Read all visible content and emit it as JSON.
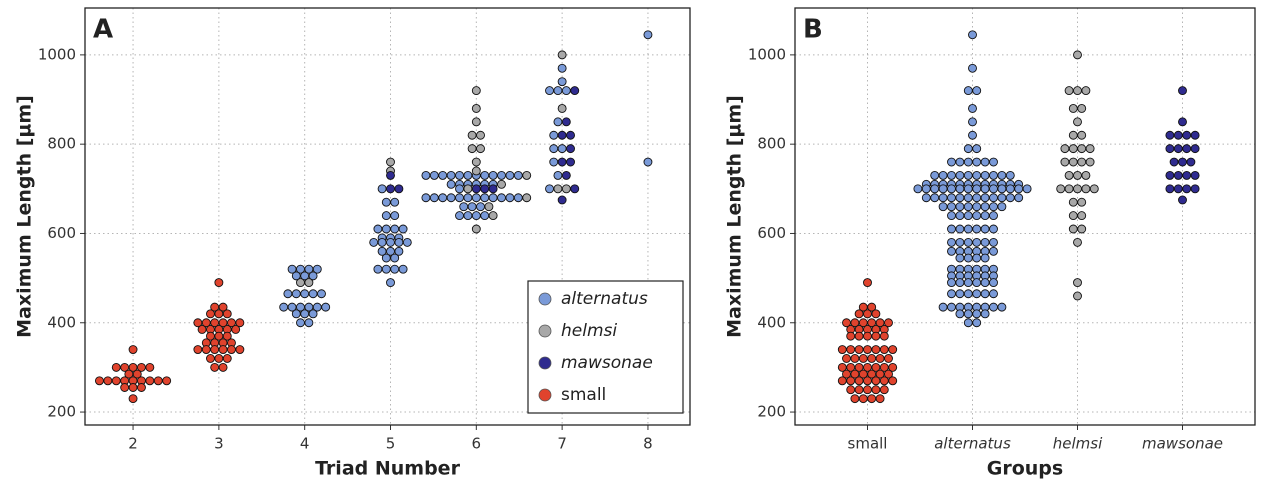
{
  "chart_data": [
    {
      "type": "dotplot",
      "panel_label": "A",
      "x_label": "Triad Number",
      "y_label": "Maximum Length [µm]",
      "xlim": [
        1.44,
        8.49
      ],
      "xticks": [
        2,
        3,
        4,
        5,
        6,
        7,
        8
      ],
      "ylim": [
        171,
        1105
      ],
      "yticks": [
        200,
        400,
        600,
        800,
        1000
      ],
      "grid": true,
      "legend": "lower right",
      "series": [
        {
          "name": "alternatus",
          "color": "#7a9ad8",
          "italic": true,
          "points": [
            [
              4,
              520
            ],
            [
              4,
              520
            ],
            [
              4,
              520
            ],
            [
              4,
              520
            ],
            [
              4,
              505
            ],
            [
              4,
              505
            ],
            [
              4,
              505
            ],
            [
              4,
              465
            ],
            [
              4,
              465
            ],
            [
              4,
              465
            ],
            [
              4,
              465
            ],
            [
              4,
              465
            ],
            [
              4,
              435
            ],
            [
              4,
              435
            ],
            [
              4,
              435
            ],
            [
              4,
              435
            ],
            [
              4,
              435
            ],
            [
              4,
              435
            ],
            [
              4,
              420
            ],
            [
              4,
              420
            ],
            [
              4,
              420
            ],
            [
              4,
              400
            ],
            [
              4,
              400
            ],
            [
              5,
              700
            ],
            [
              5,
              670
            ],
            [
              5,
              670
            ],
            [
              5,
              640
            ],
            [
              5,
              640
            ],
            [
              5,
              610
            ],
            [
              5,
              610
            ],
            [
              5,
              610
            ],
            [
              5,
              610
            ],
            [
              5,
              590
            ],
            [
              5,
              590
            ],
            [
              5,
              590
            ],
            [
              5,
              580
            ],
            [
              5,
              580
            ],
            [
              5,
              580
            ],
            [
              5,
              580
            ],
            [
              5,
              580
            ],
            [
              5,
              560
            ],
            [
              5,
              560
            ],
            [
              5,
              560
            ],
            [
              5,
              545
            ],
            [
              5,
              545
            ],
            [
              5,
              520
            ],
            [
              5,
              520
            ],
            [
              5,
              520
            ],
            [
              5,
              520
            ],
            [
              5,
              490
            ],
            [
              6,
              730
            ],
            [
              6,
              730
            ],
            [
              6,
              730
            ],
            [
              6,
              730
            ],
            [
              6,
              730
            ],
            [
              6,
              730
            ],
            [
              6,
              730
            ],
            [
              6,
              730
            ],
            [
              6,
              730
            ],
            [
              6,
              730
            ],
            [
              6,
              730
            ],
            [
              6,
              730
            ],
            [
              6,
              710
            ],
            [
              6,
              710
            ],
            [
              6,
              710
            ],
            [
              6,
              710
            ],
            [
              6,
              710
            ],
            [
              6,
              710
            ],
            [
              6,
              700
            ],
            [
              6,
              680
            ],
            [
              6,
              680
            ],
            [
              6,
              680
            ],
            [
              6,
              680
            ],
            [
              6,
              680
            ],
            [
              6,
              680
            ],
            [
              6,
              680
            ],
            [
              6,
              680
            ],
            [
              6,
              680
            ],
            [
              6,
              680
            ],
            [
              6,
              680
            ],
            [
              6,
              680
            ],
            [
              6,
              660
            ],
            [
              6,
              660
            ],
            [
              6,
              660
            ],
            [
              6,
              640
            ],
            [
              6,
              640
            ],
            [
              6,
              640
            ],
            [
              6,
              640
            ],
            [
              7,
              970
            ],
            [
              7,
              940
            ],
            [
              7,
              920
            ],
            [
              7,
              920
            ],
            [
              7,
              920
            ],
            [
              7,
              850
            ],
            [
              7,
              820
            ],
            [
              7,
              790
            ],
            [
              7,
              790
            ],
            [
              7,
              760
            ],
            [
              7,
              730
            ],
            [
              7,
              700
            ],
            [
              8,
              1045
            ],
            [
              8,
              760
            ]
          ]
        },
        {
          "name": "helmsi",
          "color": "#a8a8a8",
          "italic": true,
          "points": [
            [
              4,
              490
            ],
            [
              4,
              490
            ],
            [
              5,
              760
            ],
            [
              5,
              740
            ],
            [
              6,
              920
            ],
            [
              6,
              880
            ],
            [
              6,
              850
            ],
            [
              6,
              820
            ],
            [
              6,
              820
            ],
            [
              6,
              790
            ],
            [
              6,
              790
            ],
            [
              6,
              760
            ],
            [
              6,
              740
            ],
            [
              6,
              730
            ],
            [
              6,
              710
            ],
            [
              6,
              700
            ],
            [
              6,
              680
            ],
            [
              6,
              660
            ],
            [
              6,
              640
            ],
            [
              6,
              610
            ],
            [
              7,
              1000
            ],
            [
              7,
              880
            ],
            [
              7,
              700
            ],
            [
              7,
              700
            ]
          ]
        },
        {
          "name": "mawsonae",
          "color": "#2f2b8f",
          "italic": true,
          "points": [
            [
              5,
              730
            ],
            [
              5,
              700
            ],
            [
              5,
              700
            ],
            [
              6,
              700
            ],
            [
              6,
              700
            ],
            [
              6,
              700
            ],
            [
              7,
              920
            ],
            [
              7,
              850
            ],
            [
              7,
              820
            ],
            [
              7,
              820
            ],
            [
              7,
              790
            ],
            [
              7,
              760
            ],
            [
              7,
              760
            ],
            [
              7,
              730
            ],
            [
              7,
              700
            ],
            [
              7,
              675
            ]
          ]
        },
        {
          "name": "small",
          "color": "#e0432d",
          "italic": false,
          "points": [
            [
              2,
              340
            ],
            [
              2,
              300
            ],
            [
              2,
              300
            ],
            [
              2,
              300
            ],
            [
              2,
              300
            ],
            [
              2,
              300
            ],
            [
              2,
              285
            ],
            [
              2,
              285
            ],
            [
              2,
              270
            ],
            [
              2,
              270
            ],
            [
              2,
              270
            ],
            [
              2,
              270
            ],
            [
              2,
              270
            ],
            [
              2,
              270
            ],
            [
              2,
              270
            ],
            [
              2,
              270
            ],
            [
              2,
              270
            ],
            [
              2,
              255
            ],
            [
              2,
              255
            ],
            [
              2,
              255
            ],
            [
              2,
              230
            ],
            [
              3,
              490
            ],
            [
              3,
              435
            ],
            [
              3,
              435
            ],
            [
              3,
              420
            ],
            [
              3,
              420
            ],
            [
              3,
              420
            ],
            [
              3,
              400
            ],
            [
              3,
              400
            ],
            [
              3,
              400
            ],
            [
              3,
              400
            ],
            [
              3,
              400
            ],
            [
              3,
              400
            ],
            [
              3,
              385
            ],
            [
              3,
              385
            ],
            [
              3,
              385
            ],
            [
              3,
              385
            ],
            [
              3,
              385
            ],
            [
              3,
              370
            ],
            [
              3,
              370
            ],
            [
              3,
              370
            ],
            [
              3,
              355
            ],
            [
              3,
              355
            ],
            [
              3,
              355
            ],
            [
              3,
              355
            ],
            [
              3,
              340
            ],
            [
              3,
              340
            ],
            [
              3,
              340
            ],
            [
              3,
              340
            ],
            [
              3,
              340
            ],
            [
              3,
              340
            ],
            [
              3,
              320
            ],
            [
              3,
              320
            ],
            [
              3,
              320
            ],
            [
              3,
              300
            ],
            [
              3,
              300
            ]
          ]
        }
      ]
    },
    {
      "type": "dotplot",
      "panel_label": "B",
      "x_label": "Groups",
      "y_label": "Maximum Length [µm]",
      "ylim": [
        171,
        1105
      ],
      "yticks": [
        200,
        400,
        600,
        800,
        1000
      ],
      "grid": true,
      "categories": [
        "small",
        "alternatus",
        "helmsi",
        "mawsonae"
      ],
      "italic": [
        false,
        true,
        true,
        true
      ],
      "colors": [
        "#e0432d",
        "#7a9ad8",
        "#a8a8a8",
        "#2f2b8f"
      ],
      "values": [
        [
          490,
          435,
          435,
          420,
          420,
          420,
          400,
          400,
          400,
          400,
          400,
          400,
          385,
          385,
          385,
          385,
          385,
          370,
          370,
          370,
          370,
          370,
          340,
          340,
          340,
          340,
          340,
          340,
          340,
          320,
          320,
          320,
          320,
          320,
          320,
          300,
          300,
          300,
          300,
          300,
          300,
          300,
          285,
          285,
          285,
          285,
          285,
          285,
          270,
          270,
          270,
          270,
          270,
          270,
          270,
          250,
          250,
          250,
          250,
          250,
          230,
          230,
          230,
          230
        ],
        [
          1045,
          970,
          920,
          920,
          880,
          850,
          820,
          790,
          790,
          760,
          760,
          760,
          760,
          760,
          760,
          730,
          730,
          730,
          730,
          730,
          730,
          730,
          730,
          730,
          730,
          710,
          710,
          710,
          710,
          710,
          710,
          710,
          710,
          710,
          710,
          710,
          710,
          700,
          700,
          700,
          700,
          700,
          700,
          700,
          700,
          700,
          700,
          700,
          700,
          700,
          700,
          680,
          680,
          680,
          680,
          680,
          680,
          680,
          680,
          680,
          680,
          680,
          680,
          660,
          660,
          660,
          660,
          660,
          660,
          660,
          660,
          640,
          640,
          640,
          640,
          640,
          640,
          610,
          610,
          610,
          610,
          610,
          610,
          580,
          580,
          580,
          580,
          580,
          580,
          560,
          560,
          560,
          560,
          560,
          560,
          545,
          545,
          545,
          545,
          520,
          520,
          520,
          520,
          520,
          520,
          505,
          505,
          505,
          505,
          505,
          505,
          490,
          490,
          490,
          490,
          490,
          490,
          465,
          465,
          465,
          465,
          465,
          465,
          435,
          435,
          435,
          435,
          435,
          435,
          435,
          435,
          420,
          420,
          420,
          420,
          400,
          400
        ],
        [
          1000,
          920,
          920,
          920,
          880,
          880,
          850,
          820,
          820,
          790,
          790,
          790,
          790,
          760,
          760,
          760,
          760,
          730,
          730,
          730,
          700,
          700,
          700,
          700,
          700,
          670,
          670,
          640,
          640,
          610,
          610,
          580,
          490,
          460
        ],
        [
          920,
          850,
          820,
          820,
          820,
          820,
          790,
          790,
          790,
          790,
          760,
          760,
          760,
          730,
          730,
          730,
          730,
          700,
          700,
          700,
          700,
          675
        ]
      ]
    }
  ]
}
